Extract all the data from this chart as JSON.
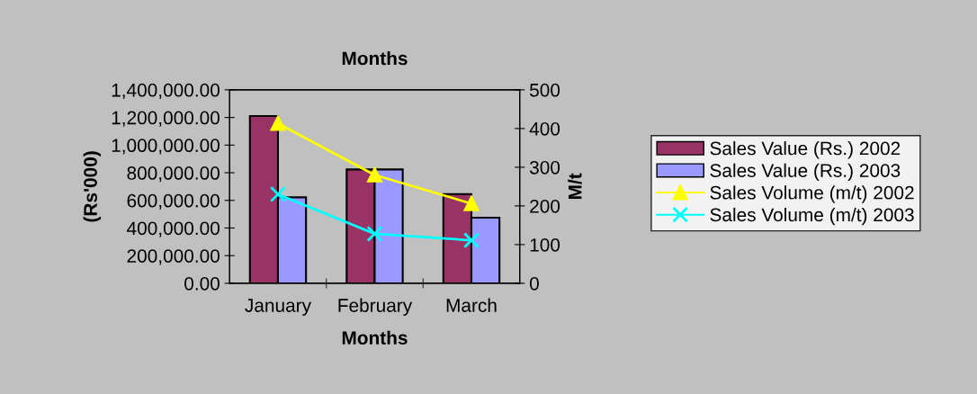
{
  "chart_data": {
    "type": "bar",
    "title": "Months",
    "xlabel": "Months",
    "ylabel": "(Rs'000)",
    "y2label": "M/t",
    "categories": [
      "January",
      "February",
      "March"
    ],
    "series": [
      {
        "name": "Sales Value (Rs.) 2002",
        "color": "#993366",
        "values": [
          1210000,
          824000,
          646000
        ]
      },
      {
        "name": "Sales Value (Rs.) 2003",
        "color": "#9999ff",
        "values": [
          622000,
          824000,
          475000
        ]
      },
      {
        "name": "Sales Volume (m/t) 2002",
        "type": "line",
        "axis": "y2",
        "marker": "triangle",
        "color": "#ffff00",
        "values": [
          413,
          280,
          206
        ]
      },
      {
        "name": "Sales Volume (m/t) 2003",
        "type": "line",
        "axis": "y2",
        "marker": "cross",
        "color": "#00ffff",
        "values": [
          230,
          128,
          111
        ]
      }
    ],
    "ylim": [
      0,
      1400000
    ],
    "yticks": [
      {
        "value": 0,
        "label": "0.00"
      },
      {
        "value": 200000,
        "label": "200,000.00"
      },
      {
        "value": 400000,
        "label": "400,000.00"
      },
      {
        "value": 600000,
        "label": "600,000.00"
      },
      {
        "value": 800000,
        "label": "800,000.00"
      },
      {
        "value": 1000000,
        "label": "1,000,000.00"
      },
      {
        "value": 1200000,
        "label": "1,200,000.00"
      },
      {
        "value": 1400000,
        "label": "1,400,000.00"
      }
    ],
    "y2lim": [
      0,
      500
    ],
    "y2ticks": [
      0,
      100,
      200,
      300,
      400,
      500
    ],
    "grid": false,
    "legend": "right"
  }
}
